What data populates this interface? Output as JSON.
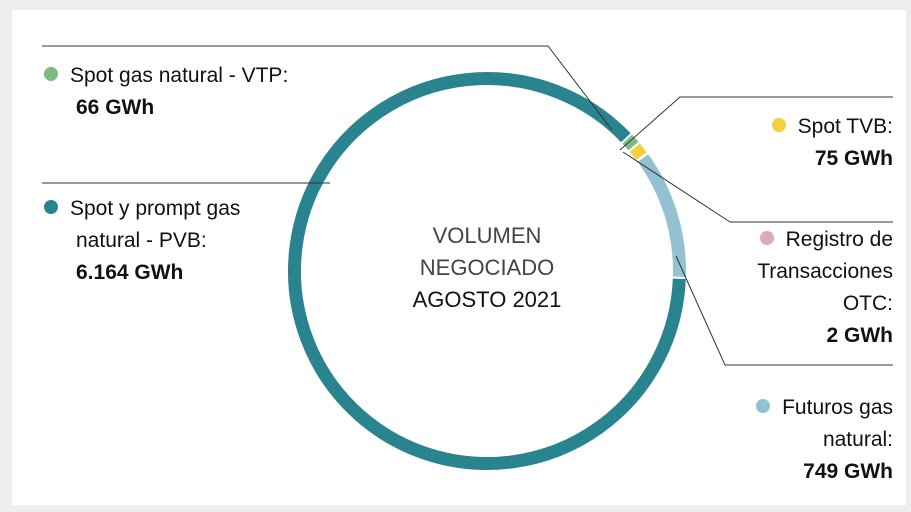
{
  "chart_data": {
    "type": "donut",
    "center_text": [
      "VOLUMEN NEGOCIADO",
      "AGOSTO 2021"
    ],
    "categories": [
      "Spot y prompt gas natural - PVB:",
      "Spot gas natural - VTP:",
      "Spot TVB:",
      "Registro de Transacciones OTC:",
      "Futuros gas natural:"
    ],
    "values": [
      6164,
      66,
      75,
      2,
      749
    ],
    "value_labels": [
      "6.164 GWh",
      "66 GWh",
      "75 GWh",
      "2 GWh",
      "749 GWh"
    ],
    "colors": [
      "#2a8490",
      "#7dbb85",
      "#f7cf3e",
      "#dba9b8",
      "#93c1d1"
    ]
  }
}
